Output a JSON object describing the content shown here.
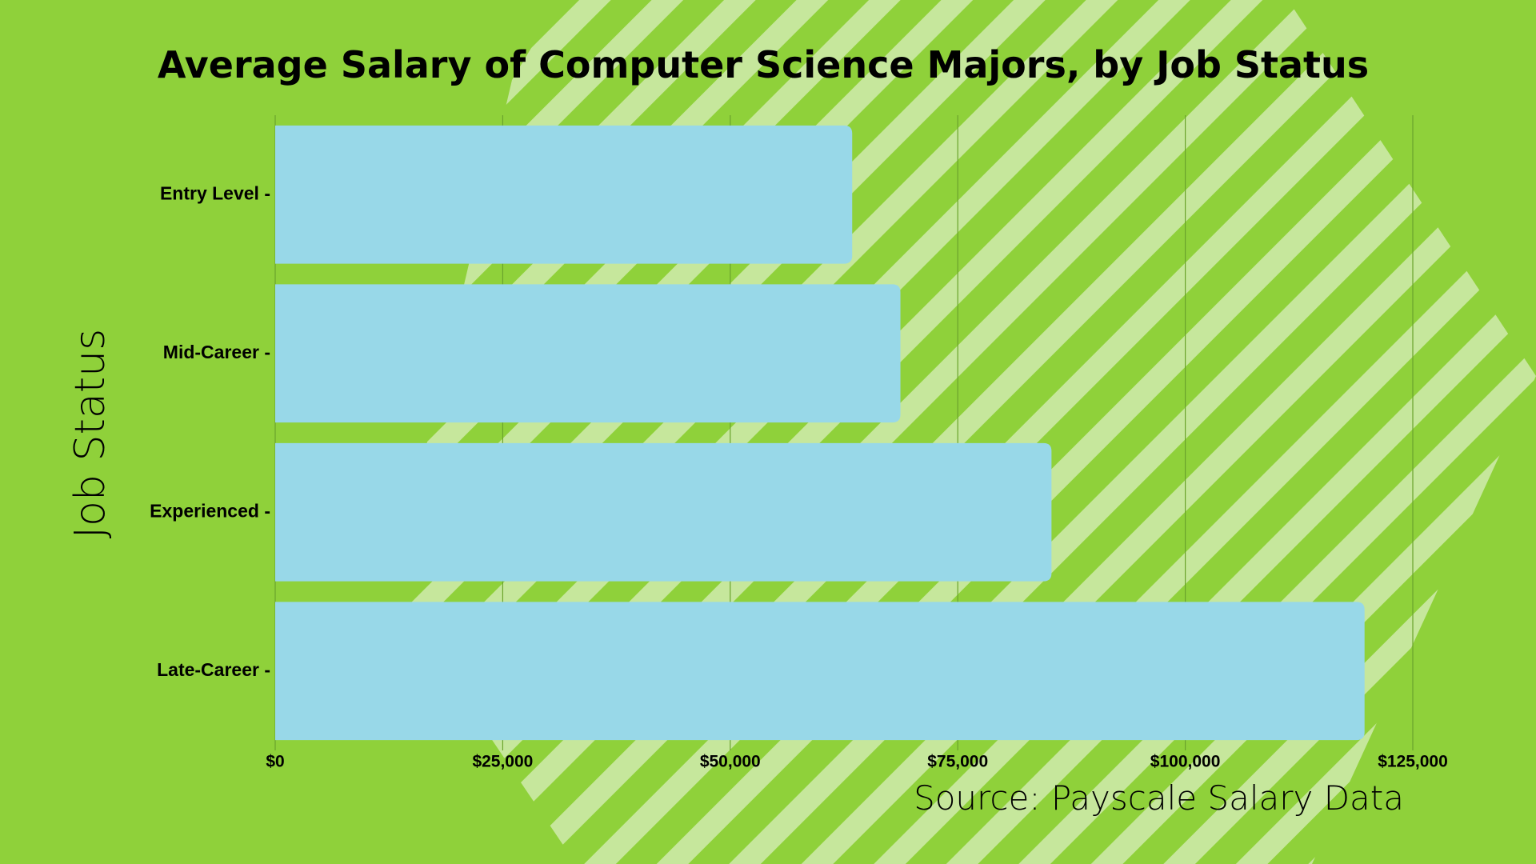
{
  "chart_data": {
    "type": "bar",
    "orientation": "horizontal",
    "title": "Average Salary of Computer Science Majors, by Job Status",
    "y_label": "Job Status",
    "source": "Source: Payscale Salary Data",
    "categories": [
      "Entry Level -",
      "Mid-Career -",
      "Experienced -",
      "Late-Career -"
    ],
    "values": [
      63400,
      68700,
      85300,
      119700
    ],
    "color": "#98d8e8",
    "xlim": [
      0,
      125000
    ],
    "xticks": [
      {
        "value": 0,
        "label": "$0"
      },
      {
        "value": 25000,
        "label": "$25,000"
      },
      {
        "value": 50000,
        "label": "$50,000"
      },
      {
        "value": 75000,
        "label": "$75,000"
      },
      {
        "value": 100000,
        "label": "$100,000"
      },
      {
        "value": 125000,
        "label": "$125,000"
      }
    ],
    "grid": true
  }
}
